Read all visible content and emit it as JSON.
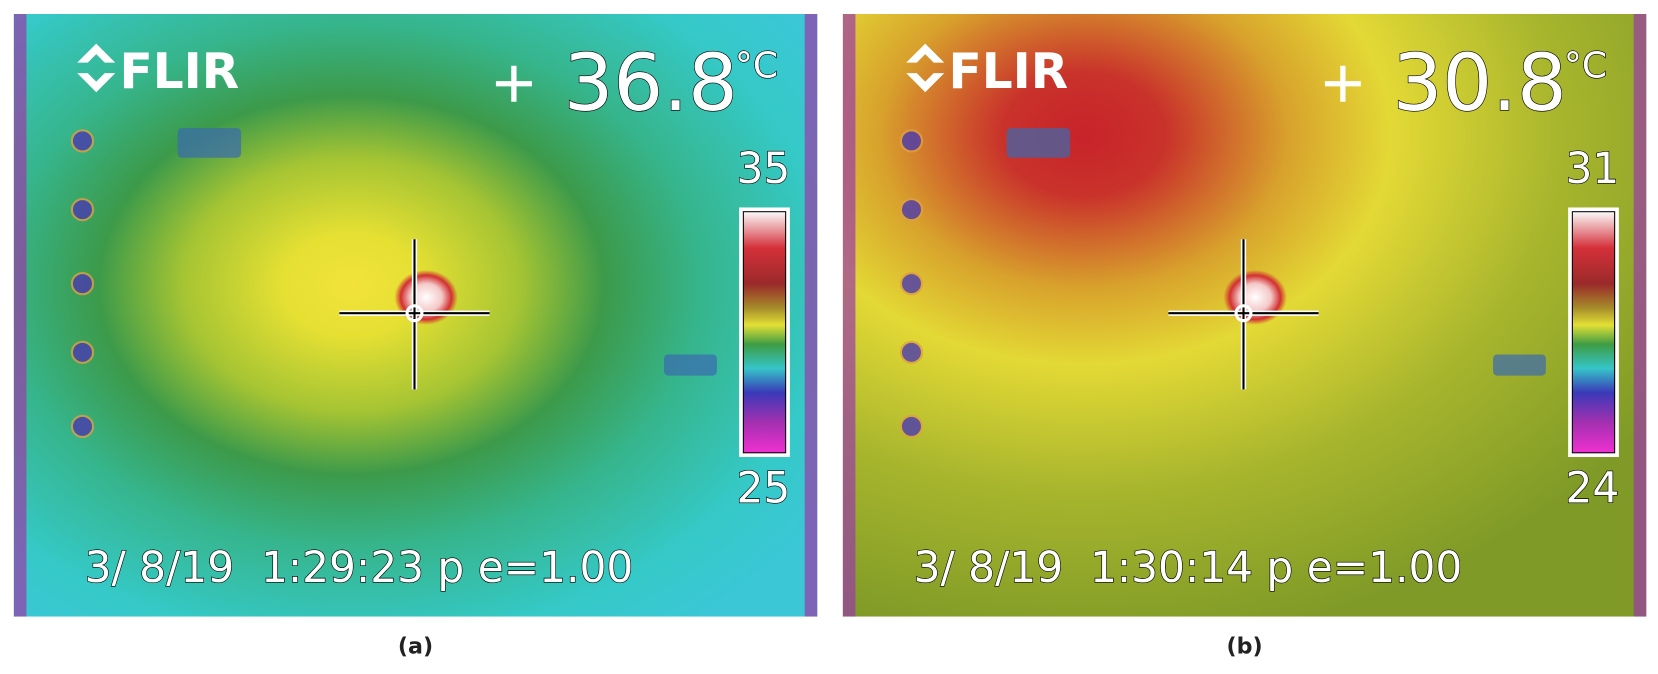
{
  "panels": [
    {
      "logo": "FLIR",
      "reading": "36.8",
      "unit": "°C",
      "scale_max": "35",
      "scale_min": "25",
      "timestamp": "3/ 8/19  1:29:23 p e=1.00",
      "caption": "(a)"
    },
    {
      "logo": "FLIR",
      "reading": "30.8",
      "unit": "°C",
      "scale_max": "31",
      "scale_min": "24",
      "timestamp": "3/ 8/19  1:30:14 p e=1.00",
      "caption": "(b)"
    }
  ]
}
